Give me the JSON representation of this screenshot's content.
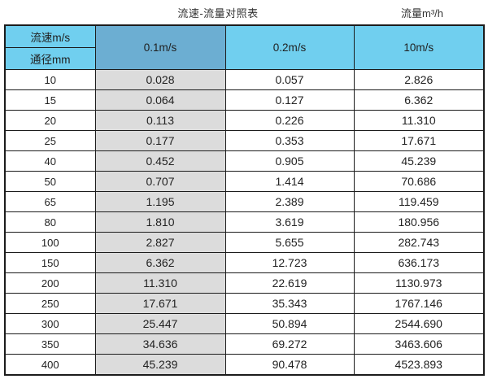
{
  "titles": {
    "main": "流速-流量对照表",
    "unit": "流量m³/h"
  },
  "chart_data": {
    "type": "table",
    "title": "流速-流量对照表",
    "unit_label": "流量m³/h",
    "corner": {
      "top": "流速m/s",
      "bottom": "通径mm"
    },
    "columns": [
      "0.1m/s",
      "0.2m/s",
      "10m/s"
    ],
    "rows": [
      {
        "dn": "10",
        "values": [
          "0.028",
          "0.057",
          "2.826"
        ]
      },
      {
        "dn": "15",
        "values": [
          "0.064",
          "0.127",
          "6.362"
        ]
      },
      {
        "dn": "20",
        "values": [
          "0.113",
          "0.226",
          "11.310"
        ]
      },
      {
        "dn": "25",
        "values": [
          "0.177",
          "0.353",
          "17.671"
        ]
      },
      {
        "dn": "40",
        "values": [
          "0.452",
          "0.905",
          "45.239"
        ]
      },
      {
        "dn": "50",
        "values": [
          "0.707",
          "1.414",
          "70.686"
        ]
      },
      {
        "dn": "65",
        "values": [
          "1.195",
          "2.389",
          "119.459"
        ]
      },
      {
        "dn": "80",
        "values": [
          "1.810",
          "3.619",
          "180.956"
        ]
      },
      {
        "dn": "100",
        "values": [
          "2.827",
          "5.655",
          "282.743"
        ]
      },
      {
        "dn": "150",
        "values": [
          "6.362",
          "12.723",
          "636.173"
        ]
      },
      {
        "dn": "200",
        "values": [
          "11.310",
          "22.619",
          "1130.973"
        ]
      },
      {
        "dn": "250",
        "values": [
          "17.671",
          "35.343",
          "1767.146"
        ]
      },
      {
        "dn": "300",
        "values": [
          "25.447",
          "50.894",
          "2544.690"
        ]
      },
      {
        "dn": "350",
        "values": [
          "34.636",
          "69.272",
          "3463.606"
        ]
      },
      {
        "dn": "400",
        "values": [
          "45.239",
          "90.478",
          "4523.893"
        ]
      }
    ]
  },
  "colors": {
    "header_light_blue": "#70cfef",
    "header_dark_blue": "#6caed2",
    "shaded_column_gray": "#dcdcdc",
    "border": "#1c1c1c",
    "text": "#2b2b2b"
  }
}
